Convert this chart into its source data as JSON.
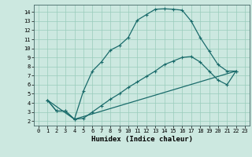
{
  "xlabel": "Humidex (Indice chaleur)",
  "bg_color": "#cce8e0",
  "grid_color": "#99ccbb",
  "line_color": "#1a6b6b",
  "xlim": [
    -0.5,
    23.5
  ],
  "ylim": [
    1.5,
    14.8
  ],
  "xticks": [
    0,
    1,
    2,
    3,
    4,
    5,
    6,
    7,
    8,
    9,
    10,
    11,
    12,
    13,
    14,
    15,
    16,
    17,
    18,
    19,
    20,
    21,
    22,
    23
  ],
  "yticks": [
    2,
    3,
    4,
    5,
    6,
    7,
    8,
    9,
    10,
    11,
    12,
    13,
    14
  ],
  "curve1_x": [
    1,
    2,
    3,
    4,
    5,
    6,
    7,
    8,
    9,
    10,
    11,
    12,
    13,
    14,
    15,
    16,
    17,
    18,
    19,
    20,
    21,
    22
  ],
  "curve1_y": [
    4.3,
    3.1,
    3.1,
    2.2,
    5.3,
    7.5,
    8.5,
    9.8,
    10.3,
    11.2,
    13.1,
    13.7,
    14.3,
    14.35,
    14.3,
    14.2,
    13.0,
    11.2,
    9.7,
    8.2,
    7.5,
    7.5
  ],
  "curve2_x": [
    1,
    2,
    3,
    4,
    5,
    6,
    7,
    8,
    9,
    10,
    11,
    12,
    13,
    14,
    15,
    16,
    17,
    18,
    19,
    20,
    21,
    22
  ],
  "curve2_y": [
    4.3,
    3.1,
    3.1,
    2.2,
    2.3,
    3.0,
    3.7,
    4.4,
    5.0,
    5.7,
    6.3,
    6.9,
    7.5,
    8.2,
    8.6,
    9.0,
    9.1,
    8.5,
    7.5,
    6.5,
    6.0,
    7.5
  ],
  "curve3_x": [
    1,
    4,
    22
  ],
  "curve3_y": [
    4.3,
    2.2,
    7.5
  ],
  "lw": 0.9,
  "ms": 2.5
}
